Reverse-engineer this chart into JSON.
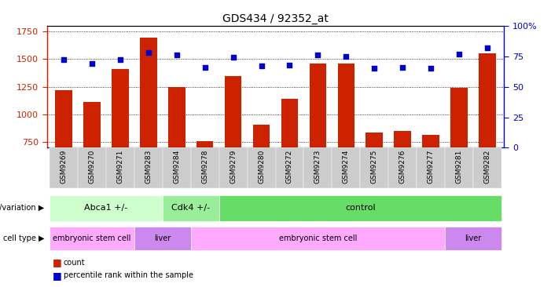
{
  "title": "GDS434 / 92352_at",
  "samples": [
    "GSM9269",
    "GSM9270",
    "GSM9271",
    "GSM9283",
    "GSM9284",
    "GSM9278",
    "GSM9279",
    "GSM9280",
    "GSM9272",
    "GSM9273",
    "GSM9274",
    "GSM9275",
    "GSM9276",
    "GSM9277",
    "GSM9281",
    "GSM9282"
  ],
  "counts": [
    1220,
    1115,
    1410,
    1690,
    1250,
    760,
    1350,
    910,
    1140,
    1460,
    1460,
    840,
    850,
    820,
    1240,
    1550
  ],
  "percentiles": [
    72,
    69,
    72,
    78,
    76,
    66,
    74,
    67,
    68,
    76,
    75,
    65,
    66,
    65,
    77,
    82
  ],
  "ylim_left": [
    700,
    1800
  ],
  "ylim_right": [
    0,
    100
  ],
  "yticks_left": [
    750,
    1000,
    1250,
    1500,
    1750
  ],
  "yticks_right": [
    0,
    25,
    50,
    75,
    100
  ],
  "bar_color": "#cc2200",
  "dot_color": "#0000cc",
  "left_tick_color": "#cc2200",
  "right_tick_color": "#0000cc",
  "background_color": "#ffffff",
  "genotypes": [
    {
      "label": "Abca1 +/-",
      "start": 0,
      "end": 4,
      "color": "#ccffcc"
    },
    {
      "label": "Cdk4 +/-",
      "start": 4,
      "end": 6,
      "color": "#99ee99"
    },
    {
      "label": "control",
      "start": 6,
      "end": 16,
      "color": "#66dd66"
    }
  ],
  "cell_types": [
    {
      "label": "embryonic stem cell",
      "start": 0,
      "end": 3,
      "color": "#ffaaff"
    },
    {
      "label": "liver",
      "start": 3,
      "end": 5,
      "color": "#cc88ee"
    },
    {
      "label": "embryonic stem cell",
      "start": 5,
      "end": 14,
      "color": "#ffaaff"
    },
    {
      "label": "liver",
      "start": 14,
      "end": 16,
      "color": "#cc88ee"
    }
  ]
}
